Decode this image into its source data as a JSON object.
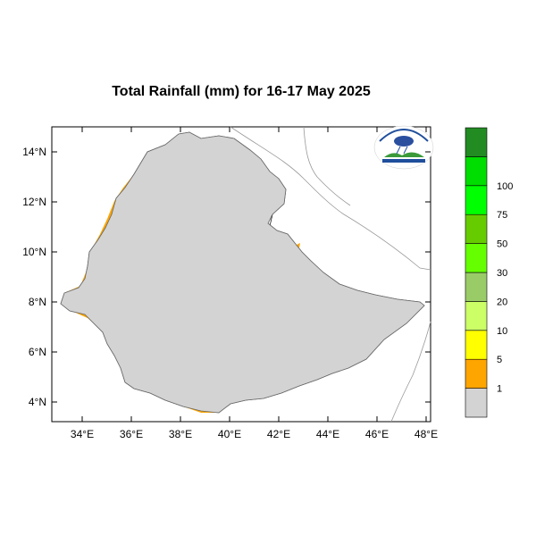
{
  "title": "Total Rainfall (mm) for 16-17 May 2025",
  "map": {
    "lat_ticks": [
      "14°N",
      "12°N",
      "10°N",
      "8°N",
      "6°N",
      "4°N"
    ],
    "lon_ticks": [
      "34°E",
      "36°E",
      "38°E",
      "40°E",
      "42°E",
      "44°E",
      "46°E",
      "48°E"
    ]
  },
  "colorbar": {
    "colors": [
      "#d3d3d3",
      "#ffa500",
      "#ffff00",
      "#ccff66",
      "#99cc66",
      "#66ff00",
      "#66cc00",
      "#00ff00",
      "#00dd00",
      "#228b22"
    ],
    "labels": [
      "1",
      "5",
      "10",
      "20",
      "30",
      "50",
      "75",
      "100"
    ]
  },
  "logo": {
    "name": "ethiopian-meteorology-logo"
  }
}
